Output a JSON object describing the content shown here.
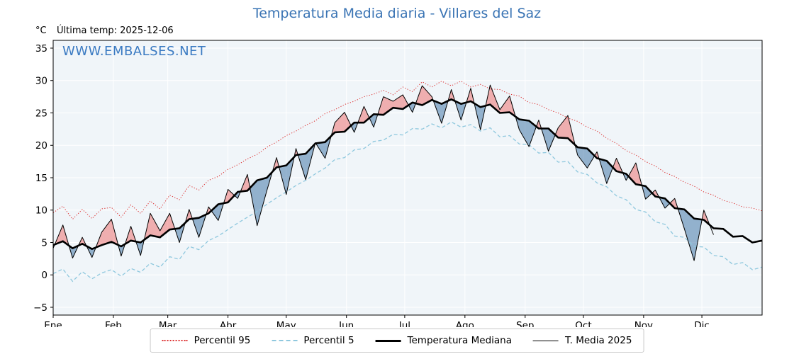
{
  "title": "Temperatura Media diaria - Villares del Saz",
  "watermark": "WWW.EMBALSES.NET",
  "y_axis_unit": "°C",
  "last_temp_label": "Última temp: 2025-12-06",
  "colors": {
    "title": "#3a74b4",
    "watermark": "#3a7ac2",
    "plot_bg": "#f0f5f9",
    "grid": "#ffffff",
    "p95": "#dd3333",
    "p5": "#8fc8de",
    "median": "#000000",
    "t2025": "#000000",
    "fill_above": "rgba(238,115,115,0.55)",
    "fill_below": "rgba(70,120,170,0.55)"
  },
  "legend": {
    "items": [
      {
        "label": "Percentil 95"
      },
      {
        "label": "Percentil 5"
      },
      {
        "label": "Temperatura Mediana"
      },
      {
        "label": "T. Media 2025"
      }
    ]
  },
  "chart_data": {
    "type": "line",
    "title": "Temperatura Media diaria - Villares del Saz",
    "xlabel": "",
    "ylabel": "°C",
    "ylim": [
      -6.2,
      36.2
    ],
    "yticks": [
      -5,
      0,
      5,
      10,
      15,
      20,
      25,
      30,
      35
    ],
    "x_months": [
      "Ene",
      "Feb",
      "Mar",
      "Abr",
      "May",
      "Jun",
      "Jul",
      "Ago",
      "Sep",
      "Oct",
      "Nov",
      "Dic"
    ],
    "month_start_days": [
      0,
      31,
      59,
      90,
      120,
      151,
      181,
      212,
      243,
      273,
      304,
      334
    ],
    "x_step_days": 5,
    "x": [
      0,
      5,
      10,
      15,
      20,
      25,
      30,
      35,
      40,
      45,
      50,
      55,
      60,
      65,
      70,
      75,
      80,
      85,
      90,
      95,
      100,
      105,
      110,
      115,
      120,
      125,
      130,
      135,
      140,
      145,
      150,
      155,
      160,
      165,
      170,
      175,
      180,
      185,
      190,
      195,
      200,
      205,
      210,
      215,
      220,
      225,
      230,
      235,
      240,
      245,
      250,
      255,
      260,
      265,
      270,
      275,
      280,
      285,
      290,
      295,
      300,
      305,
      310,
      315,
      320,
      325,
      330,
      335,
      340,
      345,
      350,
      355,
      360,
      365
    ],
    "series": [
      {
        "name": "Percentil 95",
        "style": "dotted",
        "values": [
          9.6,
          10.6,
          8.6,
          10.1,
          8.7,
          10.2,
          10.4,
          8.9,
          10.8,
          9.5,
          11.4,
          10.2,
          12.3,
          11.6,
          13.8,
          13.1,
          14.6,
          15.2,
          16.3,
          17.0,
          17.9,
          18.6,
          19.7,
          20.5,
          21.5,
          22.2,
          23.1,
          23.8,
          24.9,
          25.5,
          26.3,
          26.8,
          27.5,
          27.9,
          28.5,
          27.8,
          29.0,
          28.3,
          29.8,
          29.0,
          29.9,
          29.2,
          29.9,
          29.0,
          29.4,
          28.7,
          28.6,
          27.9,
          27.6,
          26.6,
          26.3,
          25.5,
          25.0,
          24.2,
          23.7,
          22.8,
          22.2,
          21.1,
          20.3,
          19.2,
          18.5,
          17.5,
          16.8,
          15.8,
          15.2,
          14.3,
          13.7,
          12.8,
          12.3,
          11.5,
          11.1,
          10.5,
          10.3,
          9.9
        ]
      },
      {
        "name": "Percentil 5",
        "style": "dashed",
        "values": [
          0.2,
          0.9,
          -1.0,
          0.5,
          -0.6,
          0.3,
          0.8,
          -0.2,
          1.0,
          0.4,
          1.8,
          1.2,
          2.8,
          2.4,
          4.4,
          3.9,
          5.3,
          6.0,
          7.0,
          8.0,
          8.9,
          9.8,
          10.9,
          11.9,
          12.8,
          13.8,
          14.6,
          15.6,
          16.5,
          17.8,
          18.1,
          19.3,
          19.5,
          20.6,
          20.8,
          21.7,
          21.6,
          22.6,
          22.5,
          23.3,
          22.7,
          23.6,
          22.8,
          23.2,
          22.2,
          22.7,
          21.3,
          21.5,
          20.2,
          20.1,
          18.8,
          18.9,
          17.4,
          17.5,
          15.9,
          15.5,
          14.2,
          13.6,
          12.2,
          11.6,
          10.1,
          9.7,
          8.2,
          7.8,
          6.0,
          5.8,
          4.4,
          4.3,
          3.0,
          2.8,
          1.6,
          1.9,
          0.8,
          1.2
        ]
      },
      {
        "name": "Temperatura Mediana",
        "style": "solid-thick",
        "values": [
          4.6,
          5.2,
          4.1,
          4.8,
          4.0,
          4.6,
          5.1,
          4.4,
          5.3,
          5.0,
          6.1,
          5.8,
          7.0,
          7.2,
          8.6,
          8.8,
          9.5,
          10.9,
          11.2,
          12.8,
          13.0,
          14.6,
          15.0,
          16.6,
          16.9,
          18.5,
          18.7,
          20.3,
          20.5,
          22.0,
          22.1,
          23.5,
          23.5,
          24.8,
          24.7,
          25.8,
          25.6,
          26.6,
          26.2,
          27.0,
          26.4,
          27.1,
          26.4,
          26.8,
          25.9,
          26.3,
          25.0,
          25.1,
          24.0,
          23.8,
          22.6,
          22.6,
          21.2,
          21.1,
          19.7,
          19.5,
          18.0,
          17.6,
          16.0,
          15.6,
          14.0,
          13.7,
          12.1,
          11.8,
          10.3,
          10.1,
          8.7,
          8.5,
          7.2,
          7.1,
          5.9,
          6.0,
          5.0,
          5.3
        ]
      },
      {
        "name": "T. Media 2025",
        "style": "solid-thin",
        "values": [
          4.1,
          7.7,
          2.6,
          5.8,
          2.7,
          6.6,
          8.6,
          2.9,
          7.5,
          3.0,
          9.5,
          6.8,
          9.5,
          5.0,
          10.1,
          5.8,
          10.5,
          8.4,
          13.2,
          11.8,
          15.5,
          7.6,
          13.0,
          18.1,
          12.4,
          19.5,
          14.7,
          20.4,
          18.0,
          23.5,
          25.1,
          22.0,
          26.0,
          22.8,
          27.5,
          26.8,
          27.8,
          25.1,
          29.2,
          27.5,
          23.4,
          28.6,
          23.9,
          28.8,
          22.4,
          29.3,
          25.5,
          27.6,
          22.4,
          19.8,
          23.9,
          19.1,
          22.7,
          24.6,
          18.5,
          16.5,
          19.0,
          14.1,
          18.0,
          14.6,
          17.3,
          11.7,
          13.1,
          10.3,
          11.8,
          7.1,
          2.2,
          10.0,
          6.2,
          null,
          null,
          null,
          null,
          null
        ]
      }
    ],
    "legend_position": "bottom",
    "grid": true
  }
}
